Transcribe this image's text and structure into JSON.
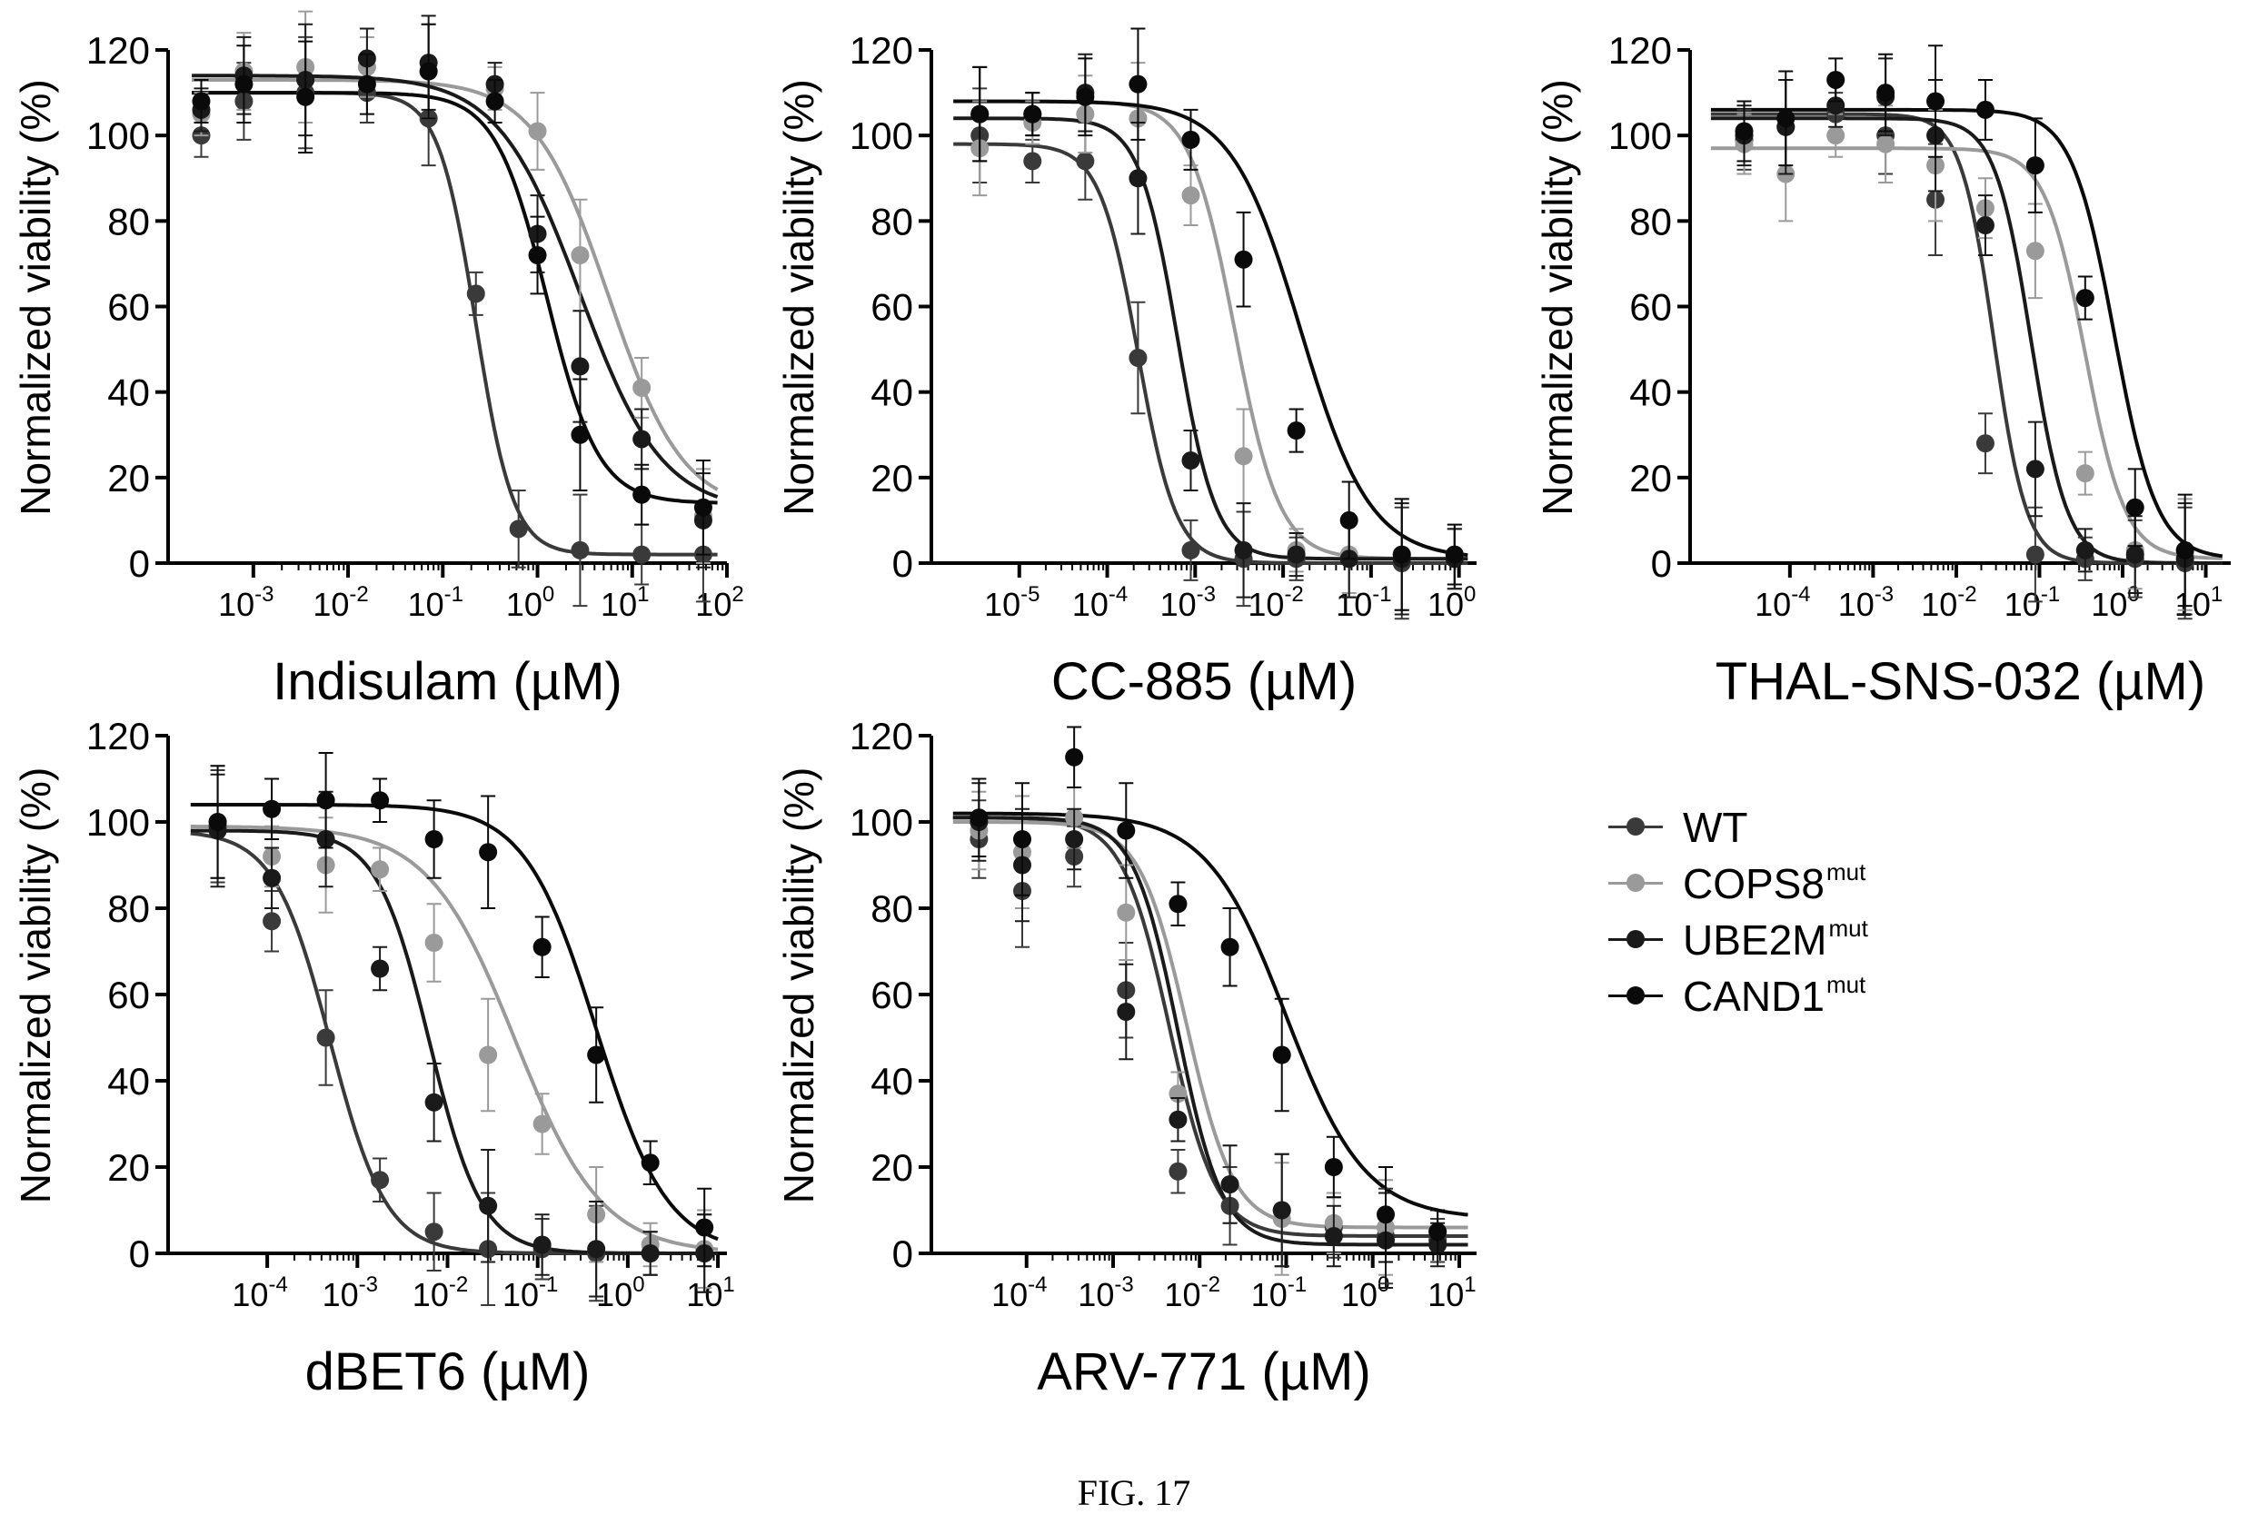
{
  "figure_caption": "FIG. 17",
  "legend": [
    {
      "label": "WT",
      "sup": "",
      "color": "#3a3a3a"
    },
    {
      "label": "COPS8",
      "sup": "mut",
      "color": "#9a9a9a"
    },
    {
      "label": "UBE2M",
      "sup": "mut",
      "color": "#1a1a1a"
    },
    {
      "label": "CAND1",
      "sup": "mut",
      "color": "#0a0a0a"
    }
  ],
  "chart_data": [
    {
      "type": "scatter",
      "xlabel": "Indisulam (µM)",
      "ylabel": "Normalized viability (%)",
      "xscale": "log",
      "xlim_log10": [
        -3.9,
        2
      ],
      "ylim": [
        0,
        120
      ],
      "yticks": [
        0,
        20,
        40,
        60,
        80,
        100,
        120
      ],
      "xticks": [
        {
          "base": "10",
          "exp": "-3"
        },
        {
          "base": "10",
          "exp": "-2"
        },
        {
          "base": "10",
          "exp": "-1"
        },
        {
          "base": "10",
          "exp": "0"
        },
        {
          "base": "10",
          "exp": "1"
        },
        {
          "base": "10",
          "exp": "2"
        }
      ],
      "series": [
        {
          "name": "WT",
          "top": 110,
          "bottom": 2,
          "log_ec50": -0.65,
          "hill": 2.2,
          "x_log10": [
            -3.55,
            -3.1,
            -2.45,
            -1.8,
            -1.15,
            -0.65,
            -0.2,
            0.45,
            1.1,
            1.75
          ],
          "y": [
            100,
            108,
            110,
            110,
            104,
            63,
            8,
            3,
            2,
            2
          ]
        },
        {
          "name": "COPS8",
          "top": 113,
          "bottom": 12,
          "log_ec50": 0.75,
          "hill": 1.1,
          "x_log10": [
            -3.55,
            -3.1,
            -2.45,
            -1.8,
            -1.15,
            -0.45,
            0,
            0.45,
            1.1,
            1.75
          ],
          "y": [
            105,
            115,
            116,
            116,
            115,
            111,
            101,
            72,
            41,
            11
          ]
        },
        {
          "name": "UBE2M",
          "top": 114,
          "bottom": 12,
          "log_ec50": 0.45,
          "hill": 1.0,
          "x_log10": [
            -3.55,
            -3.1,
            -2.45,
            -1.8,
            -1.15,
            -0.45,
            0,
            0.45,
            1.1,
            1.75
          ],
          "y": [
            106,
            114,
            113,
            118,
            117,
            112,
            77,
            46,
            29,
            10
          ]
        },
        {
          "name": "CAND1",
          "top": 110,
          "bottom": 14,
          "log_ec50": 0.1,
          "hill": 1.6,
          "x_log10": [
            -3.55,
            -3.1,
            -2.45,
            -1.8,
            -1.15,
            -0.45,
            0,
            0.45,
            1.1,
            1.75
          ],
          "y": [
            108,
            112,
            109,
            112,
            115,
            108,
            72,
            30,
            16,
            13
          ]
        }
      ]
    },
    {
      "type": "scatter",
      "xlabel": "CC-885 (µM)",
      "ylabel": "Normalized viability (%)",
      "xscale": "log",
      "xlim_log10": [
        -6,
        0.2
      ],
      "ylim": [
        0,
        120
      ],
      "yticks": [
        0,
        20,
        40,
        60,
        80,
        100,
        120
      ],
      "xticks": [
        {
          "base": "10",
          "exp": "-5"
        },
        {
          "base": "10",
          "exp": "-4"
        },
        {
          "base": "10",
          "exp": "-3"
        },
        {
          "base": "10",
          "exp": "-2"
        },
        {
          "base": "10",
          "exp": "-1"
        },
        {
          "base": "10",
          "exp": "0"
        }
      ],
      "series": [
        {
          "name": "WT",
          "top": 98,
          "bottom": 0,
          "log_ec50": -3.65,
          "hill": 2.0,
          "x_log10": [
            -5.45,
            -4.85,
            -4.25,
            -3.65,
            -3.05,
            -2.45,
            -1.85,
            -1.25,
            -0.65,
            -0.05
          ],
          "y": [
            100,
            94,
            94,
            48,
            3,
            1,
            1,
            1,
            0,
            1
          ]
        },
        {
          "name": "COPS8",
          "top": 108,
          "bottom": 1,
          "log_ec50": -2.55,
          "hill": 1.7,
          "x_log10": [
            -5.45,
            -4.85,
            -4.25,
            -3.65,
            -3.05,
            -2.45,
            -1.85,
            -1.25,
            -0.65,
            -0.05
          ],
          "y": [
            97,
            103,
            105,
            104,
            86,
            25,
            3,
            2,
            2,
            2
          ]
        },
        {
          "name": "UBE2M",
          "top": 104,
          "bottom": 1,
          "log_ec50": -3.2,
          "hill": 2.0,
          "x_log10": [
            -5.45,
            -4.85,
            -4.25,
            -3.65,
            -3.05,
            -2.45,
            -1.85,
            -1.25,
            -0.65,
            -0.05
          ],
          "y": [
            105,
            105,
            110,
            90,
            24,
            3,
            2,
            1,
            1,
            1
          ]
        },
        {
          "name": "CAND1",
          "top": 108,
          "bottom": 1,
          "log_ec50": -1.8,
          "hill": 1.1,
          "x_log10": [
            -5.45,
            -4.85,
            -4.25,
            -3.65,
            -3.05,
            -2.45,
            -1.85,
            -1.25,
            -0.65,
            -0.05
          ],
          "y": [
            105,
            105,
            109,
            112,
            99,
            71,
            31,
            10,
            2,
            2
          ]
        }
      ]
    },
    {
      "type": "scatter",
      "xlabel": "THAL-SNS-032 (µM)",
      "ylabel": "Normalized viability (%)",
      "xscale": "log",
      "xlim_log10": [
        -5.2,
        1.3
      ],
      "ylim": [
        0,
        120
      ],
      "yticks": [
        0,
        20,
        40,
        60,
        80,
        100,
        120
      ],
      "xticks": [
        {
          "base": "10",
          "exp": "-4"
        },
        {
          "base": "10",
          "exp": "-3"
        },
        {
          "base": "10",
          "exp": "-2"
        },
        {
          "base": "10",
          "exp": "-1"
        },
        {
          "base": "10",
          "exp": "0"
        },
        {
          "base": "10",
          "exp": "1"
        }
      ],
      "series": [
        {
          "name": "WT",
          "top": 105,
          "bottom": 0,
          "log_ec50": -1.55,
          "hill": 2.2,
          "x_log10": [
            -4.55,
            -4.05,
            -3.45,
            -2.85,
            -2.25,
            -1.65,
            -1.05,
            -0.45,
            0.15,
            0.75
          ],
          "y": [
            99,
            102,
            105,
            100,
            85,
            28,
            2,
            1,
            1,
            0
          ]
        },
        {
          "name": "COPS8",
          "top": 97,
          "bottom": 1,
          "log_ec50": -0.45,
          "hill": 1.8,
          "x_log10": [
            -4.55,
            -4.05,
            -3.45,
            -2.85,
            -2.25,
            -1.65,
            -1.05,
            -0.45,
            0.15,
            0.75
          ],
          "y": [
            98,
            91,
            100,
            98,
            93,
            83,
            73,
            21,
            3,
            2
          ]
        },
        {
          "name": "UBE2M",
          "top": 104,
          "bottom": 0,
          "log_ec50": -1.1,
          "hill": 2.0,
          "x_log10": [
            -4.55,
            -4.05,
            -3.45,
            -2.85,
            -2.25,
            -1.65,
            -1.05,
            -0.45,
            0.15,
            0.75
          ],
          "y": [
            100,
            102,
            107,
            109,
            100,
            79,
            22,
            3,
            2,
            1
          ]
        },
        {
          "name": "CAND1",
          "top": 106,
          "bottom": 1,
          "log_ec50": -0.1,
          "hill": 1.7,
          "x_log10": [
            -4.55,
            -4.05,
            -3.45,
            -2.85,
            -2.25,
            -1.65,
            -1.05,
            -0.45,
            0.15,
            0.75
          ],
          "y": [
            101,
            104,
            113,
            110,
            108,
            106,
            93,
            62,
            13,
            3
          ]
        }
      ]
    },
    {
      "type": "scatter",
      "xlabel": "dBET6 (µM)",
      "ylabel": "Normalized viability (%)",
      "xscale": "log",
      "xlim_log10": [
        -5.1,
        1.1
      ],
      "ylim": [
        0,
        120
      ],
      "yticks": [
        0,
        20,
        40,
        60,
        80,
        100,
        120
      ],
      "xticks": [
        {
          "base": "10",
          "exp": "-4"
        },
        {
          "base": "10",
          "exp": "-3"
        },
        {
          "base": "10",
          "exp": "-2"
        },
        {
          "base": "10",
          "exp": "-1"
        },
        {
          "base": "10",
          "exp": "0"
        },
        {
          "base": "10",
          "exp": "1"
        }
      ],
      "series": [
        {
          "name": "WT",
          "top": 98,
          "bottom": 0,
          "log_ec50": -3.3,
          "hill": 1.4,
          "x_log10": [
            -4.55,
            -3.95,
            -3.35,
            -2.75,
            -2.15,
            -1.55,
            -0.95,
            -0.35,
            0.25,
            0.85
          ],
          "y": [
            99,
            77,
            50,
            17,
            5,
            1,
            1,
            0,
            0,
            0
          ]
        },
        {
          "name": "COPS8",
          "top": 99,
          "bottom": 0,
          "log_ec50": -1.25,
          "hill": 0.9,
          "x_log10": [
            -4.55,
            -3.95,
            -3.35,
            -2.75,
            -2.15,
            -1.55,
            -0.95,
            -0.35,
            0.25,
            0.85
          ],
          "y": [
            100,
            92,
            90,
            89,
            72,
            46,
            30,
            9,
            2,
            1
          ]
        },
        {
          "name": "UBE2M",
          "top": 98,
          "bottom": 0,
          "log_ec50": -2.2,
          "hill": 1.5,
          "x_log10": [
            -4.55,
            -3.95,
            -3.35,
            -2.75,
            -2.15,
            -1.55,
            -0.95,
            -0.35,
            0.25,
            0.85
          ],
          "y": [
            98,
            87,
            96,
            66,
            35,
            11,
            2,
            1,
            0,
            0
          ]
        },
        {
          "name": "CAND1",
          "top": 104,
          "bottom": 0,
          "log_ec50": -0.35,
          "hill": 1.1,
          "x_log10": [
            -4.55,
            -3.95,
            -3.35,
            -2.75,
            -2.15,
            -1.55,
            -0.95,
            -0.35,
            0.25,
            0.85
          ],
          "y": [
            100,
            103,
            105,
            105,
            96,
            93,
            71,
            46,
            21,
            6
          ]
        }
      ]
    },
    {
      "type": "scatter",
      "xlabel": "ARV-771 (µM)",
      "ylabel": "Normalized viability (%)",
      "xscale": "log",
      "xlim_log10": [
        -5.1,
        1.2
      ],
      "ylim": [
        0,
        120
      ],
      "yticks": [
        0,
        20,
        40,
        60,
        80,
        100,
        120
      ],
      "xticks": [
        {
          "base": "10",
          "exp": "-4"
        },
        {
          "base": "10",
          "exp": "-3"
        },
        {
          "base": "10",
          "exp": "-2"
        },
        {
          "base": "10",
          "exp": "-1"
        },
        {
          "base": "10",
          "exp": "0"
        },
        {
          "base": "10",
          "exp": "1"
        }
      ],
      "series": [
        {
          "name": "WT",
          "top": 101,
          "bottom": 4,
          "log_ec50": -2.35,
          "hill": 1.6,
          "x_log10": [
            -4.55,
            -4.05,
            -3.45,
            -2.85,
            -2.25,
            -1.65,
            -1.05,
            -0.45,
            0.15,
            0.75
          ],
          "y": [
            96,
            84,
            92,
            61,
            19,
            11,
            10,
            6,
            4,
            3
          ]
        },
        {
          "name": "COPS8",
          "top": 100,
          "bottom": 6,
          "log_ec50": -2.15,
          "hill": 1.6,
          "x_log10": [
            -4.55,
            -4.05,
            -3.45,
            -2.85,
            -2.25,
            -1.65,
            -1.05,
            -0.45,
            0.15,
            0.75
          ],
          "y": [
            98,
            93,
            101,
            79,
            37,
            16,
            8,
            7,
            6,
            5
          ]
        },
        {
          "name": "UBE2M",
          "top": 101,
          "bottom": 2,
          "log_ec50": -2.25,
          "hill": 1.7,
          "x_log10": [
            -4.55,
            -4.05,
            -3.45,
            -2.85,
            -2.25,
            -1.65,
            -1.05,
            -0.45,
            0.15,
            0.75
          ],
          "y": [
            100,
            90,
            96,
            56,
            31,
            16,
            10,
            4,
            3,
            2
          ]
        },
        {
          "name": "CAND1",
          "top": 102,
          "bottom": 8,
          "log_ec50": -1.0,
          "hill": 0.95,
          "x_log10": [
            -4.55,
            -4.05,
            -3.45,
            -2.85,
            -2.25,
            -1.65,
            -1.05,
            -0.45,
            0.15,
            0.75
          ],
          "y": [
            101,
            96,
            115,
            98,
            81,
            71,
            46,
            20,
            9,
            5
          ]
        }
      ]
    }
  ]
}
